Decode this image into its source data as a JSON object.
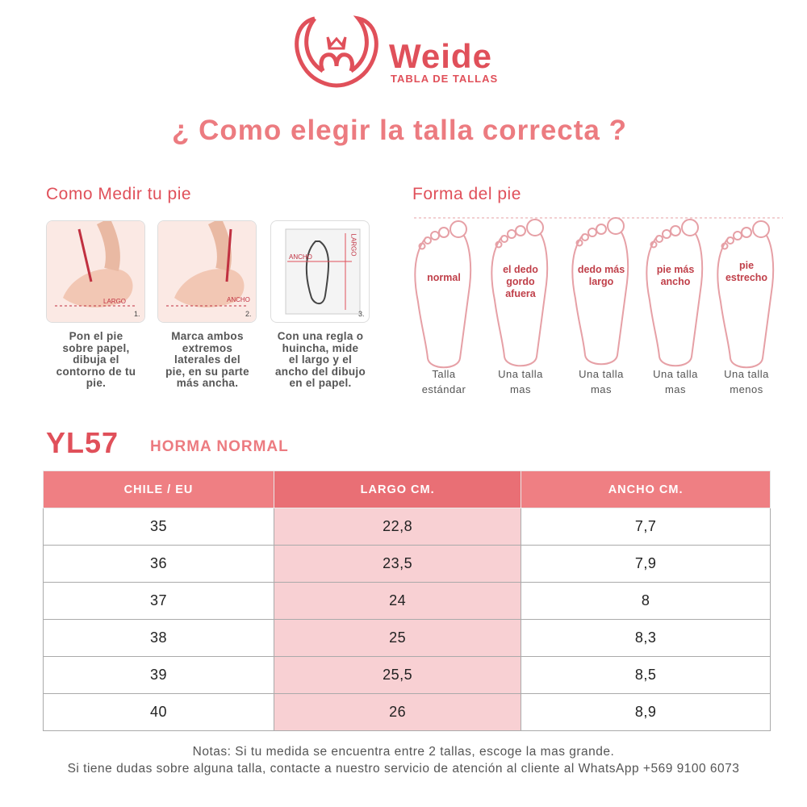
{
  "header": {
    "brand": "Weide",
    "subtitle": "TABLA DE TALLAS",
    "title": "¿ Como elegir la talla correcta ?"
  },
  "measure": {
    "heading": "Como Medir tu pie",
    "steps": [
      {
        "tags": [
          "LARGO"
        ],
        "number": "1.",
        "caption": [
          "Pon el pie",
          "sobre papel,",
          "dibuja el",
          "contorno de tu",
          "pie."
        ]
      },
      {
        "tags": [
          "ANCHO"
        ],
        "number": "2.",
        "caption": [
          "Marca ambos",
          "extremos",
          "laterales del",
          "pie, en su parte",
          "más ancha."
        ]
      },
      {
        "tags": [
          "ANCHO",
          "LARGO"
        ],
        "number": "3.",
        "caption": [
          "Con una regla o",
          "huincha, mide",
          "el largo y el",
          "ancho del dibujo",
          "en el papel."
        ]
      }
    ]
  },
  "foot_shapes": {
    "heading": "Forma del pie",
    "shapes": [
      {
        "label": [
          "normal"
        ],
        "caption": [
          "Talla",
          "estándar"
        ]
      },
      {
        "label": [
          "el dedo",
          "gordo",
          "afuera"
        ],
        "caption": [
          "Una talla",
          "mas"
        ]
      },
      {
        "label": [
          "dedo más",
          "largo"
        ],
        "caption": [
          "Una talla",
          "mas"
        ]
      },
      {
        "label": [
          "pie más",
          "ancho"
        ],
        "caption": [
          "Una talla",
          "mas"
        ]
      },
      {
        "label": [
          "pie",
          "estrecho"
        ],
        "caption": [
          "Una talla",
          "menos"
        ]
      }
    ]
  },
  "product": {
    "code": "YL57",
    "last": "HORMA NORMAL"
  },
  "table": {
    "header": [
      "CHILE / EU",
      "LARGO CM.",
      "ANCHO CM."
    ],
    "rows": [
      [
        "35",
        "22,8",
        "7,7"
      ],
      [
        "36",
        "23,5",
        "7,9"
      ],
      [
        "37",
        "24",
        "8"
      ],
      [
        "38",
        "25",
        "8,3"
      ],
      [
        "39",
        "25,5",
        "8,5"
      ],
      [
        "40",
        "26",
        "8,9"
      ]
    ]
  },
  "notes": [
    "Notas: Si tu medida se encuentra entre 2 tallas, escoge la mas grande.",
    "Si tiene dudas sobre alguna talla, contacte a nuestro servicio de atención al cliente al WhatsApp +569 9100 6073"
  ]
}
